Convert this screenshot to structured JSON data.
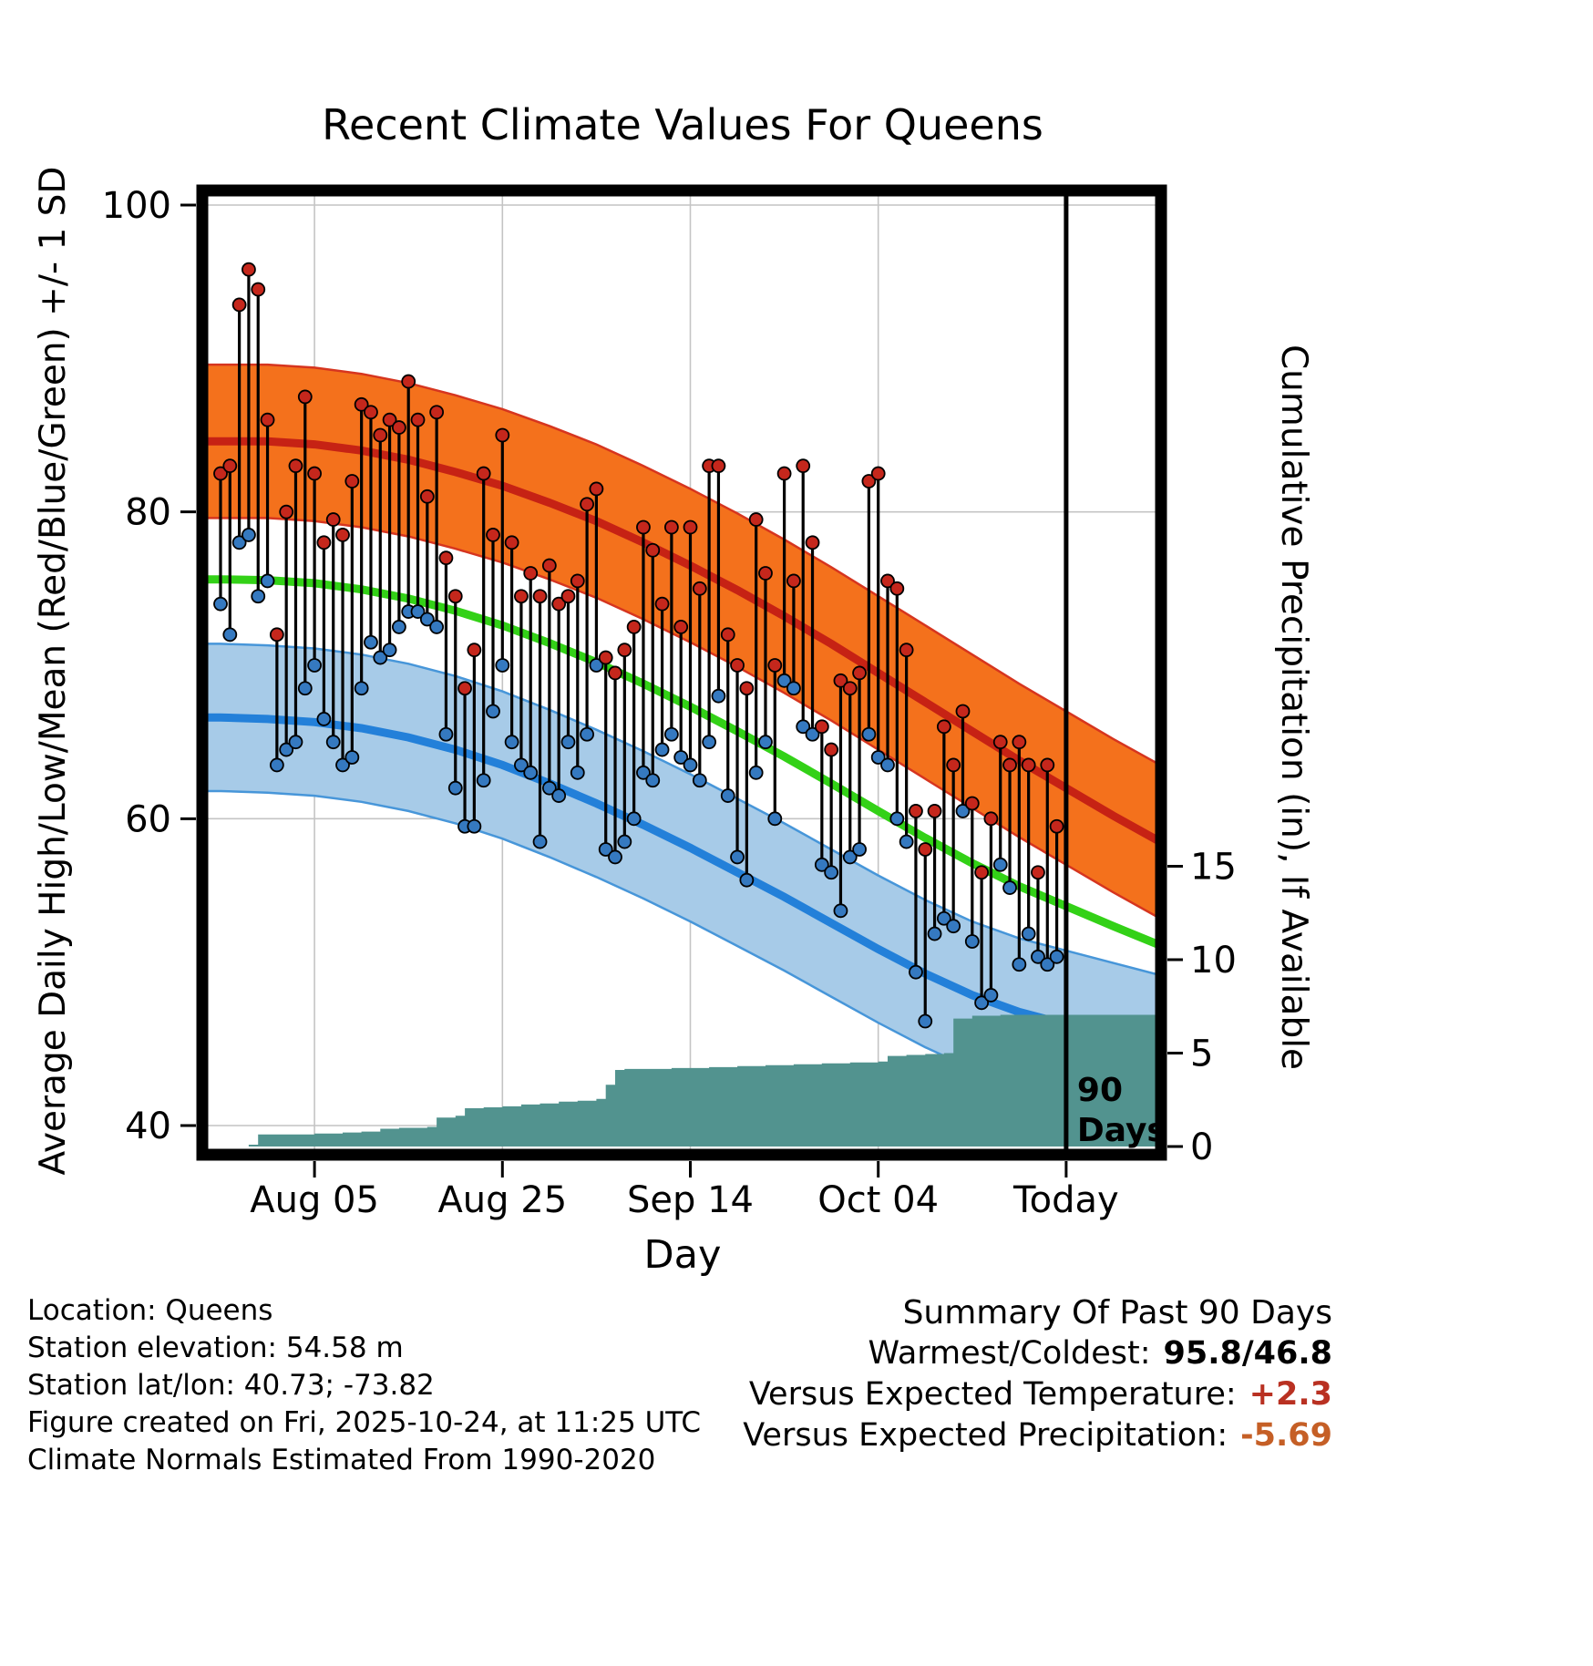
{
  "footer_left": {
    "lines": [
      "Location: Queens",
      "Station elevation: 54.58 m",
      "Station lat/lon: 40.73; -73.82",
      "Figure created on Fri, 2025-10-24, at 11:25 UTC",
      "Climate Normals Estimated From 1990-2020"
    ]
  },
  "summary": {
    "heading": "Summary Of Past 90 Days",
    "rows": [
      {
        "label": "Warmest/Coldest:",
        "value": "95.8/46.8",
        "value_color": "#000000"
      },
      {
        "label": "Versus Expected Temperature:",
        "value": "+2.3",
        "value_color": "#b93122"
      },
      {
        "label": "Versus Expected Precipitation:",
        "value": "-5.69",
        "value_color": "#c55f26"
      }
    ]
  },
  "chart_data": {
    "type": "line",
    "title": "Recent Climate Values For Queens",
    "xlabel": "Day",
    "ylabel_left": "Average Daily High/Low/Mean (Red/Blue/Green) +/- 1 SD",
    "ylabel_right": "Cumulative Precipitation (in), If Available",
    "x_ticks": [
      {
        "label": "Aug 05",
        "day": 10
      },
      {
        "label": "Aug 25",
        "day": 30
      },
      {
        "label": "Sep 14",
        "day": 50
      },
      {
        "label": "Oct 04",
        "day": 70
      },
      {
        "label": "Today",
        "day": 90
      }
    ],
    "y_left": {
      "ticks": [
        40,
        60,
        80,
        100
      ],
      "range": [
        37.5,
        100.6
      ]
    },
    "y_right": {
      "ticks": [
        0,
        5,
        10,
        15
      ],
      "range": [
        0,
        21
      ]
    },
    "annotation": {
      "day": 90,
      "lines": [
        "90",
        "Days"
      ]
    },
    "colors": {
      "grid": "#c4c4c4",
      "high_band": "#f4711c",
      "high_band_edge": "#d6351f",
      "high_line": "#c62214",
      "low_band": "#a7cbe8",
      "low_band_edge": "#4796d9",
      "low_line": "#2380d9",
      "mean_line": "#33d117",
      "precip_area": "#52938f",
      "high_dot": "#c5271c",
      "low_dot": "#3579c0",
      "bar_line": "#000000"
    },
    "normals": {
      "days": [
        -2,
        0,
        5,
        10,
        15,
        20,
        25,
        30,
        35,
        40,
        45,
        50,
        55,
        60,
        65,
        70,
        75,
        80,
        85,
        90,
        95,
        100
      ],
      "high": [
        84.6,
        84.6,
        84.6,
        84.4,
        84.0,
        83.4,
        82.6,
        81.7,
        80.6,
        79.4,
        78.0,
        76.5,
        74.9,
        73.2,
        71.4,
        69.5,
        67.6,
        65.7,
        63.8,
        62.0,
        60.2,
        58.5
      ],
      "low": [
        66.6,
        66.6,
        66.5,
        66.3,
        65.9,
        65.3,
        64.5,
        63.5,
        62.3,
        61.0,
        59.6,
        58.1,
        56.5,
        54.9,
        53.2,
        51.5,
        49.9,
        48.5,
        47.4,
        46.6,
        45.8,
        45.0
      ],
      "high_sd": 5.0,
      "low_sd": 4.8
    },
    "daily": {
      "start_day": 0,
      "highs": [
        82.5,
        83.0,
        93.5,
        95.8,
        94.5,
        86.0,
        72.0,
        80.0,
        83.0,
        87.5,
        82.5,
        78.0,
        79.5,
        78.5,
        82.0,
        87.0,
        86.5,
        85.0,
        86.0,
        85.5,
        88.5,
        86.0,
        81.0,
        86.5,
        77.0,
        74.5,
        68.5,
        71.0,
        82.5,
        78.5,
        85.0,
        78.0,
        74.5,
        76.0,
        74.5,
        76.5,
        74.0,
        74.5,
        75.5,
        80.5,
        81.5,
        70.5,
        69.5,
        71.0,
        72.5,
        79.0,
        77.5,
        74.0,
        79.0,
        72.5,
        79.0,
        75.0,
        83.0,
        83.0,
        72.0,
        70.0,
        68.5,
        79.5,
        76.0,
        70.0,
        82.5,
        75.5,
        83.0,
        78.0,
        66.0,
        64.5,
        69.0,
        68.5,
        69.5,
        82.0,
        82.5,
        75.5,
        75.0,
        71.0,
        60.5,
        58.0,
        60.5,
        66.0,
        63.5,
        67.0,
        61.0,
        56.5,
        60.0,
        65.0,
        63.5,
        65.0,
        63.5,
        56.5,
        63.5,
        59.5
      ],
      "lows": [
        74.0,
        72.0,
        78.0,
        78.5,
        74.5,
        75.5,
        63.5,
        64.5,
        65.0,
        68.5,
        70.0,
        66.5,
        65.0,
        63.5,
        64.0,
        68.5,
        71.5,
        70.5,
        71.0,
        72.5,
        73.5,
        73.5,
        73.0,
        72.5,
        65.5,
        62.0,
        59.5,
        59.5,
        62.5,
        67.0,
        70.0,
        65.0,
        63.5,
        63.0,
        58.5,
        62.0,
        61.5,
        65.0,
        63.0,
        65.5,
        70.0,
        58.0,
        57.5,
        58.5,
        60.0,
        63.0,
        62.5,
        64.5,
        65.5,
        64.0,
        63.5,
        62.5,
        65.0,
        68.0,
        61.5,
        57.5,
        56.0,
        63.0,
        65.0,
        60.0,
        69.0,
        68.5,
        66.0,
        65.5,
        57.0,
        56.5,
        54.0,
        57.5,
        58.0,
        65.5,
        64.0,
        63.5,
        60.0,
        58.5,
        50.0,
        46.8,
        52.5,
        53.5,
        53.0,
        60.5,
        52.0,
        48.0,
        48.5,
        57.0,
        55.5,
        50.5,
        52.5,
        51.0,
        50.5,
        51.0
      ]
    },
    "precip_cumulative": {
      "steps": [
        [
          0,
          0
        ],
        [
          3,
          0.1
        ],
        [
          4,
          0.65
        ],
        [
          10,
          0.7
        ],
        [
          13,
          0.75
        ],
        [
          15,
          0.8
        ],
        [
          17,
          0.95
        ],
        [
          19,
          1.0
        ],
        [
          22,
          1.05
        ],
        [
          23,
          1.55
        ],
        [
          25,
          1.65
        ],
        [
          26,
          2.05
        ],
        [
          28,
          2.1
        ],
        [
          30,
          2.15
        ],
        [
          32,
          2.25
        ],
        [
          34,
          2.3
        ],
        [
          36,
          2.4
        ],
        [
          38,
          2.45
        ],
        [
          40,
          2.55
        ],
        [
          41,
          3.3
        ],
        [
          42,
          4.1
        ],
        [
          43,
          4.15
        ],
        [
          48,
          4.2
        ],
        [
          52,
          4.25
        ],
        [
          55,
          4.3
        ],
        [
          58,
          4.35
        ],
        [
          61,
          4.4
        ],
        [
          64,
          4.45
        ],
        [
          67,
          4.5
        ],
        [
          70,
          4.55
        ],
        [
          71,
          4.85
        ],
        [
          73,
          4.9
        ],
        [
          75,
          4.95
        ],
        [
          77,
          5.0
        ],
        [
          78,
          6.85
        ],
        [
          80,
          7.0
        ],
        [
          83,
          7.05
        ],
        [
          100,
          7.1
        ]
      ]
    }
  }
}
